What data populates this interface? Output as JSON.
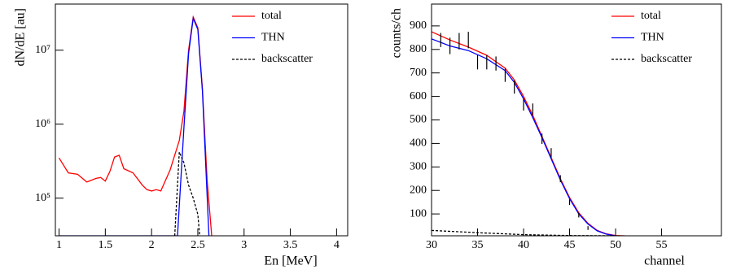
{
  "chart_data": [
    {
      "type": "line",
      "xlabel": "En [MeV]",
      "ylabel": "dN/dE [au]",
      "log_y": true,
      "legend": "upper right",
      "xlim": [
        0.96,
        4.12
      ],
      "ylim": [
        31000,
        42000000
      ],
      "xticks": [
        1,
        1.5,
        2,
        2.5,
        3,
        3.5,
        4
      ],
      "yticks": [
        {
          "value": 100000,
          "label": "10⁵"
        },
        {
          "value": 1000000,
          "label": "10⁶"
        },
        {
          "value": 10000000,
          "label": "10⁷"
        }
      ],
      "series": [
        {
          "name": "total",
          "color": "#ff0000",
          "line_style": "solid",
          "x": [
            1,
            1.1,
            1.2,
            1.3,
            1.4,
            1.45,
            1.5,
            1.55,
            1.6,
            1.65,
            1.7,
            1.8,
            1.9,
            1.95,
            2.0,
            2.05,
            2.1,
            2.2,
            2.3,
            2.35,
            2.4,
            2.45,
            2.5,
            2.55,
            2.6,
            2.65
          ],
          "values": [
            350000,
            220000,
            210000,
            165000,
            185000,
            190000,
            170000,
            230000,
            360000,
            380000,
            250000,
            220000,
            150000,
            130000,
            125000,
            130000,
            125000,
            240000,
            600000,
            1500000,
            10000000,
            28000000,
            20000000,
            3000000,
            180000,
            31000
          ]
        },
        {
          "name": "THN",
          "color": "#0000ff",
          "line_style": "solid",
          "x": [
            1,
            2.2,
            2.28,
            2.35,
            2.4,
            2.45,
            2.5,
            2.55,
            2.62
          ],
          "values": [
            31000,
            31000,
            31000,
            900000,
            9000000,
            27000000,
            19000000,
            2800000,
            31000
          ]
        },
        {
          "name": "backscatter",
          "color": "#000000",
          "line_style": "dashed",
          "x": [
            2.25,
            2.3,
            2.35,
            2.4,
            2.45,
            2.5,
            2.52
          ],
          "values": [
            31000,
            420000,
            300000,
            150000,
            100000,
            60000,
            31000
          ]
        }
      ]
    },
    {
      "type": "line",
      "xlabel": "channel",
      "ylabel": "counts/ch",
      "log_y": false,
      "legend": "upper right",
      "xlim": [
        30,
        61.5
      ],
      "ylim": [
        7,
        993
      ],
      "xticks": [
        30,
        35,
        40,
        45,
        50,
        55
      ],
      "yticks": [
        100,
        200,
        300,
        400,
        500,
        600,
        700,
        800,
        900
      ],
      "series": [
        {
          "name": "total",
          "color": "#ff0000",
          "line_style": "solid",
          "x": [
            30,
            32,
            34,
            36,
            38,
            39,
            40,
            41,
            42,
            43,
            44,
            45,
            46,
            47,
            48,
            49,
            50,
            51
          ],
          "values": [
            875,
            840,
            810,
            775,
            720,
            670,
            600,
            520,
            430,
            340,
            250,
            170,
            105,
            60,
            30,
            15,
            8,
            7
          ]
        },
        {
          "name": "THN",
          "color": "#0000ff",
          "line_style": "solid",
          "x": [
            30,
            32,
            34,
            36,
            38,
            39,
            40,
            41,
            42,
            43,
            44,
            45,
            46,
            47,
            48,
            49,
            50
          ],
          "values": [
            845,
            815,
            795,
            760,
            710,
            660,
            590,
            510,
            425,
            335,
            245,
            165,
            100,
            57,
            28,
            14,
            7
          ]
        },
        {
          "name": "backscatter",
          "color": "#000000",
          "line_style": "dashed",
          "x": [
            30,
            35,
            40,
            45,
            50
          ],
          "values": [
            30,
            20,
            12,
            8,
            7
          ]
        }
      ],
      "points": {
        "x": [
          31,
          32,
          33,
          34,
          35,
          36,
          37,
          38,
          39,
          40,
          41,
          42,
          43,
          44,
          45,
          46,
          47
        ],
        "values": [
          840,
          815,
          835,
          840,
          745,
          745,
          740,
          690,
          640,
          565,
          545,
          420,
          360,
          250,
          150,
          95,
          40
        ],
        "errors": [
          30,
          35,
          35,
          35,
          30,
          30,
          30,
          28,
          28,
          25,
          25,
          22,
          20,
          15,
          12,
          10,
          8
        ]
      }
    }
  ]
}
